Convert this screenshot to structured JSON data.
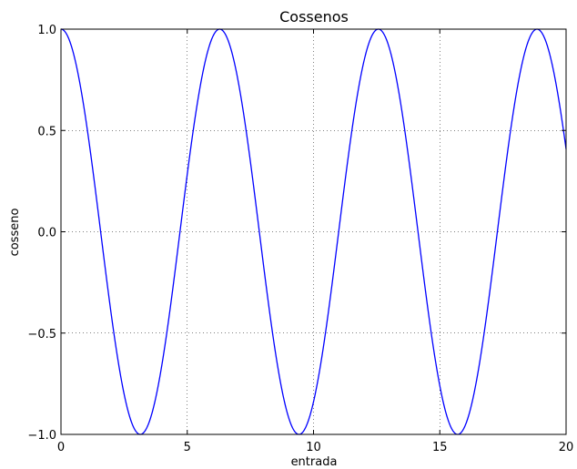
{
  "chart_data": {
    "type": "line",
    "title": "Cossenos",
    "xlabel": "entrada",
    "ylabel": "cosseno",
    "xlim": [
      0,
      20
    ],
    "ylim": [
      -1.0,
      1.0
    ],
    "grid": true,
    "grid_style": "dotted",
    "x_ticks": [
      0,
      5,
      10,
      15,
      20
    ],
    "x_tick_labels": [
      "0",
      "5",
      "10",
      "15",
      "20"
    ],
    "y_ticks": [
      -1.0,
      -0.5,
      0.0,
      0.5,
      1.0
    ],
    "y_tick_labels": [
      "−1.0",
      "−0.5",
      "0.0",
      "0.5",
      "1.0"
    ],
    "series": [
      {
        "function": "cos(x)",
        "color": "#0000ff",
        "x_range": [
          0,
          20
        ],
        "key_points": [
          {
            "x": 0,
            "y": 1.0
          },
          {
            "x": 3.14,
            "y": -1.0
          },
          {
            "x": 6.28,
            "y": 1.0
          },
          {
            "x": 9.42,
            "y": -1.0
          },
          {
            "x": 12.57,
            "y": 1.0
          },
          {
            "x": 15.71,
            "y": -1.0
          },
          {
            "x": 18.85,
            "y": 1.0
          },
          {
            "x": 20,
            "y": 0.41
          }
        ]
      }
    ]
  }
}
